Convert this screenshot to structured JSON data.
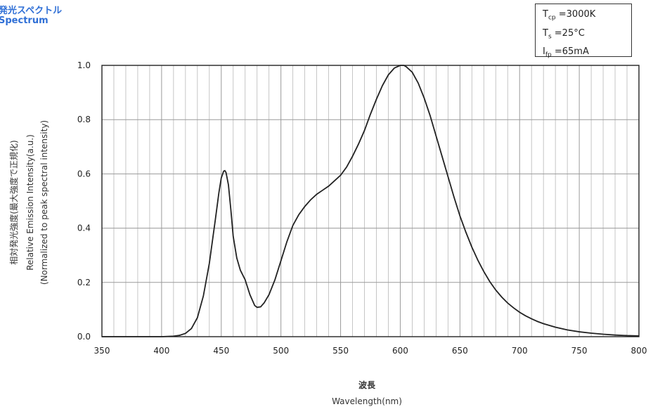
{
  "header": {
    "title_jp": "発光スペクトル",
    "title_en": "Spectrum"
  },
  "conditions": [
    {
      "sym": "T",
      "sub": "cp",
      "val": " =3000K"
    },
    {
      "sym": "T",
      "sub": "s",
      "val": " =25°C"
    },
    {
      "sym": "I",
      "sub": "fp",
      "val": " =65mA"
    }
  ],
  "chart_data": {
    "type": "line",
    "xlabel_jp": "波長",
    "xlabel": "Wavelength(nm)",
    "ylabel_jp": "相対発光強度(最大強度で正規化)",
    "ylabel": "Relative Emission Intensity(a.u.)",
    "ylabel_sub": "(Normalized to peak spectral intensity)",
    "xlim": [
      350,
      800
    ],
    "ylim": [
      0,
      1.0
    ],
    "x_ticks": [
      350,
      400,
      450,
      500,
      550,
      600,
      650,
      700,
      750,
      800
    ],
    "x_tick_labels": [
      "350",
      "400",
      "450",
      "500",
      "550",
      "600",
      "650",
      "700",
      "750",
      "800"
    ],
    "y_ticks": [
      0.0,
      0.2,
      0.4,
      0.6,
      0.8,
      1.0
    ],
    "y_tick_labels": [
      "0.0",
      "0.2",
      "0.4",
      "0.6",
      "0.8",
      "1.0"
    ],
    "x_minor_step": 10,
    "y_grid_step": 0.2,
    "grid": true,
    "line_color": "#222222",
    "series": [
      {
        "x": [
          350,
          400,
          410,
          415,
          420,
          425,
          430,
          435,
          440,
          445,
          448,
          450,
          452,
          453,
          454,
          456,
          458,
          460,
          463,
          466,
          470,
          474,
          478,
          480,
          483,
          486,
          490,
          495,
          500,
          505,
          510,
          515,
          520,
          525,
          530,
          535,
          540,
          545,
          550,
          555,
          560,
          565,
          570,
          575,
          580,
          585,
          590,
          595,
          600,
          603,
          605,
          610,
          615,
          620,
          625,
          630,
          635,
          640,
          645,
          650,
          655,
          660,
          665,
          670,
          675,
          680,
          685,
          690,
          695,
          700,
          705,
          710,
          715,
          720,
          730,
          740,
          750,
          760,
          770,
          780,
          790,
          800
        ],
        "y": [
          0.0,
          0.0,
          0.002,
          0.005,
          0.012,
          0.03,
          0.07,
          0.15,
          0.27,
          0.43,
          0.53,
          0.585,
          0.61,
          0.612,
          0.605,
          0.56,
          0.47,
          0.37,
          0.29,
          0.245,
          0.21,
          0.155,
          0.115,
          0.108,
          0.11,
          0.125,
          0.155,
          0.21,
          0.28,
          0.35,
          0.41,
          0.45,
          0.48,
          0.505,
          0.525,
          0.54,
          0.555,
          0.575,
          0.595,
          0.625,
          0.665,
          0.71,
          0.76,
          0.82,
          0.875,
          0.925,
          0.965,
          0.99,
          1.0,
          1.0,
          0.995,
          0.975,
          0.935,
          0.88,
          0.815,
          0.74,
          0.665,
          0.59,
          0.515,
          0.445,
          0.385,
          0.33,
          0.282,
          0.24,
          0.203,
          0.172,
          0.146,
          0.124,
          0.106,
          0.09,
          0.077,
          0.066,
          0.056,
          0.048,
          0.035,
          0.025,
          0.018,
          0.013,
          0.009,
          0.006,
          0.004,
          0.003
        ]
      }
    ]
  }
}
